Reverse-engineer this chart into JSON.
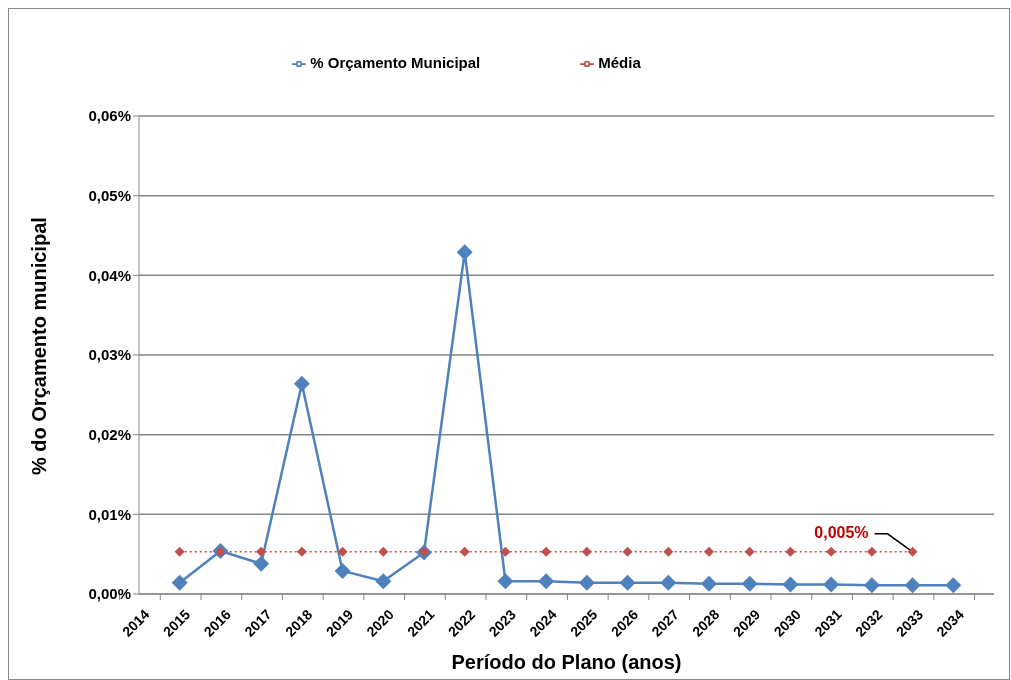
{
  "chart_data": {
    "type": "line",
    "xlabel": "Período do Plano (anos)",
    "ylabel": "% do Orçamento municipal",
    "categories": [
      "2014",
      "2015",
      "2016",
      "2017",
      "2018",
      "2019",
      "2020",
      "2021",
      "2022",
      "2023",
      "2024",
      "2025",
      "2026",
      "2027",
      "2028",
      "2029",
      "2030",
      "2031",
      "2032",
      "2033",
      "2034",
      null
    ],
    "series": [
      {
        "name": "% Orçamento Municipal",
        "color": "#4f81bd",
        "marker": "diamond",
        "line_style": "solid",
        "values": [
          null,
          0.0014,
          0.0054,
          0.0038,
          0.0264,
          0.0029,
          0.0016,
          0.0052,
          0.0429,
          0.0016,
          0.0016,
          0.0014,
          0.0014,
          0.0014,
          0.0013,
          0.0013,
          0.0012,
          0.0012,
          0.0011,
          0.0011,
          0.0011,
          null
        ]
      },
      {
        "name": "Média",
        "color": "#c0504d",
        "marker": "diamond",
        "line_style": "dotted",
        "values": [
          null,
          0.0053,
          0.0053,
          0.0053,
          0.0053,
          0.0053,
          0.0053,
          0.0053,
          0.0053,
          0.0053,
          0.0053,
          0.0053,
          0.0053,
          0.0053,
          0.0053,
          0.0053,
          0.0053,
          0.0053,
          0.0053,
          0.0053,
          null,
          null
        ]
      }
    ],
    "ylim": [
      0,
      0.06
    ],
    "yticks": [
      {
        "value": 0,
        "label": "0,00%"
      },
      {
        "value": 0.01,
        "label": "0,01%"
      },
      {
        "value": 0.02,
        "label": "0,02%"
      },
      {
        "value": 0.03,
        "label": "0,03%"
      },
      {
        "value": 0.04,
        "label": "0,04%"
      },
      {
        "value": 0.05,
        "label": "0,05%"
      },
      {
        "value": 0.06,
        "label": "0,06%"
      }
    ],
    "grid": "y",
    "legend": "top",
    "annotations": [
      {
        "text": "0,005%",
        "x": "2033",
        "y": 0.0053
      }
    ]
  }
}
